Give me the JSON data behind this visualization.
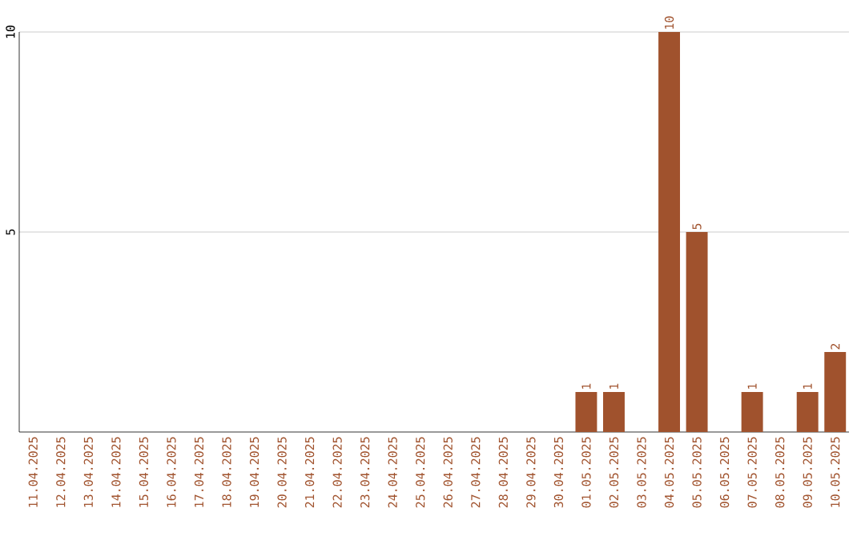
{
  "chart_data": {
    "type": "bar",
    "categories": [
      "11.04.2025",
      "12.04.2025",
      "13.04.2025",
      "14.04.2025",
      "15.04.2025",
      "16.04.2025",
      "17.04.2025",
      "18.04.2025",
      "19.04.2025",
      "20.04.2025",
      "21.04.2025",
      "22.04.2025",
      "23.04.2025",
      "24.04.2025",
      "25.04.2025",
      "26.04.2025",
      "27.04.2025",
      "28.04.2025",
      "29.04.2025",
      "30.04.2025",
      "01.05.2025",
      "02.05.2025",
      "03.05.2025",
      "04.05.2025",
      "05.05.2025",
      "06.05.2025",
      "07.05.2025",
      "08.05.2025",
      "09.05.2025",
      "10.05.2025"
    ],
    "values": [
      0,
      0,
      0,
      0,
      0,
      0,
      0,
      0,
      0,
      0,
      0,
      0,
      0,
      0,
      0,
      0,
      0,
      0,
      0,
      0,
      1,
      1,
      0,
      10,
      5,
      0,
      1,
      0,
      1,
      2
    ],
    "value_labels": [
      null,
      null,
      null,
      null,
      null,
      null,
      null,
      null,
      null,
      null,
      null,
      null,
      null,
      null,
      null,
      null,
      null,
      null,
      null,
      null,
      "1",
      "1",
      null,
      "10",
      "5",
      null,
      "1",
      null,
      "1",
      "2"
    ],
    "color": "#a0522d",
    "ylim": [
      0,
      10
    ],
    "yticks": [
      5,
      10
    ],
    "grid": "y"
  }
}
